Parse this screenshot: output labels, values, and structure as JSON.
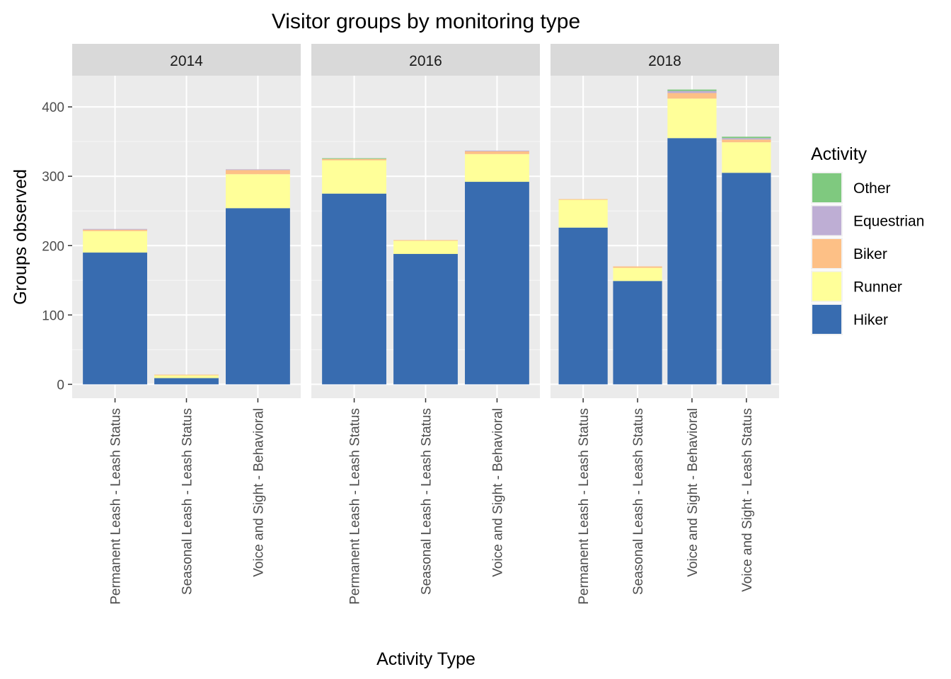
{
  "chart_data": {
    "type": "bar",
    "stacked": true,
    "faceted": true,
    "title": "Visitor groups by monitoring type",
    "xlabel": "Activity Type",
    "ylabel": "Groups observed",
    "ylim": [
      -20,
      445
    ],
    "yticks": [
      0,
      100,
      200,
      300,
      400
    ],
    "legend": {
      "title": "Activity",
      "placement": "right",
      "entries": [
        "Other",
        "Equestrian",
        "Biker",
        "Runner",
        "Hiker"
      ]
    },
    "colors": {
      "Hiker": "#386CB0",
      "Runner": "#FFFF99",
      "Biker": "#FDC086",
      "Equestrian": "#BEAED4",
      "Other": "#7FC97F"
    },
    "stack_order": [
      "Hiker",
      "Runner",
      "Biker",
      "Equestrian",
      "Other"
    ],
    "facets": [
      {
        "label": "2014",
        "categories": [
          "Permanent Leash - Leash Status",
          "Seasonal Leash - Leash Status",
          "Voice and Sight - Behavioral"
        ],
        "series": [
          {
            "name": "Hiker",
            "values": [
              190,
              9,
              254
            ]
          },
          {
            "name": "Runner",
            "values": [
              31,
              4,
              49
            ]
          },
          {
            "name": "Biker",
            "values": [
              2,
              1,
              6
            ]
          },
          {
            "name": "Equestrian",
            "values": [
              1,
              0,
              1
            ]
          },
          {
            "name": "Other",
            "values": [
              0,
              0,
              0
            ]
          }
        ]
      },
      {
        "label": "2016",
        "categories": [
          "Permanent Leash - Leash Status",
          "Seasonal Leash - Leash Status",
          "Voice and Sight - Behavioral"
        ],
        "series": [
          {
            "name": "Hiker",
            "values": [
              275,
              188,
              292
            ]
          },
          {
            "name": "Runner",
            "values": [
              48,
              19,
              40
            ]
          },
          {
            "name": "Biker",
            "values": [
              2,
              1,
              4
            ]
          },
          {
            "name": "Equestrian",
            "values": [
              0,
              0,
              1
            ]
          },
          {
            "name": "Other",
            "values": [
              1,
              0,
              0
            ]
          }
        ]
      },
      {
        "label": "2018",
        "categories": [
          "Permanent Leash - Leash Status",
          "Seasonal Leash - Leash Status",
          "Voice and Sight - Behavioral",
          "Voice and Sight - Leash Status"
        ],
        "series": [
          {
            "name": "Hiker",
            "values": [
              226,
              149,
              355,
              305
            ]
          },
          {
            "name": "Runner",
            "values": [
              40,
              19,
              57,
              44
            ]
          },
          {
            "name": "Biker",
            "values": [
              1,
              2,
              8,
              4
            ]
          },
          {
            "name": "Equestrian",
            "values": [
              0,
              0,
              3,
              2
            ]
          },
          {
            "name": "Other",
            "values": [
              0,
              0,
              2,
              2
            ]
          }
        ]
      }
    ]
  }
}
